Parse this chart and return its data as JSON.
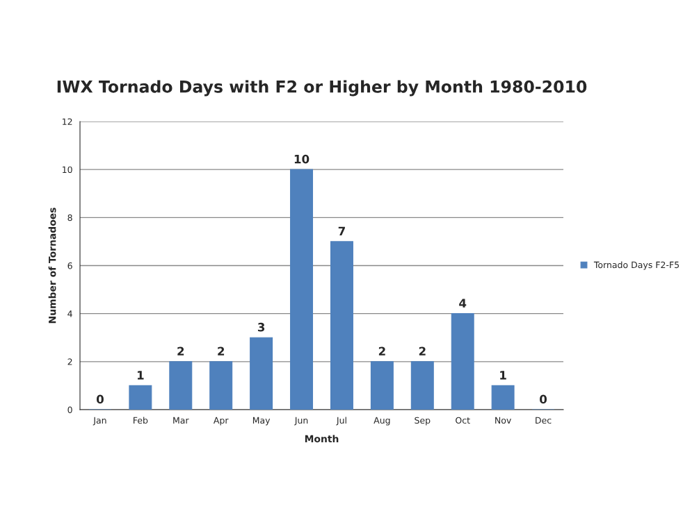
{
  "chart_data": {
    "type": "bar",
    "title": "IWX Tornado Days with F2 or Higher by Month 1980-2010",
    "xlabel": "Month",
    "ylabel": "Number of Tornadoes",
    "categories": [
      "Jan",
      "Feb",
      "Mar",
      "Apr",
      "May",
      "Jun",
      "Jul",
      "Aug",
      "Sep",
      "Oct",
      "Nov",
      "Dec"
    ],
    "series": [
      {
        "name": "Tornado Days F2-F5",
        "color": "#4f81bd",
        "values": [
          0,
          1,
          2,
          2,
          3,
          10,
          7,
          2,
          2,
          4,
          1,
          0
        ]
      }
    ],
    "ylim": [
      0,
      12
    ],
    "yticks": [
      0,
      2,
      4,
      6,
      8,
      10,
      12
    ],
    "grid": "y",
    "legend": "right",
    "data_labels": true
  }
}
